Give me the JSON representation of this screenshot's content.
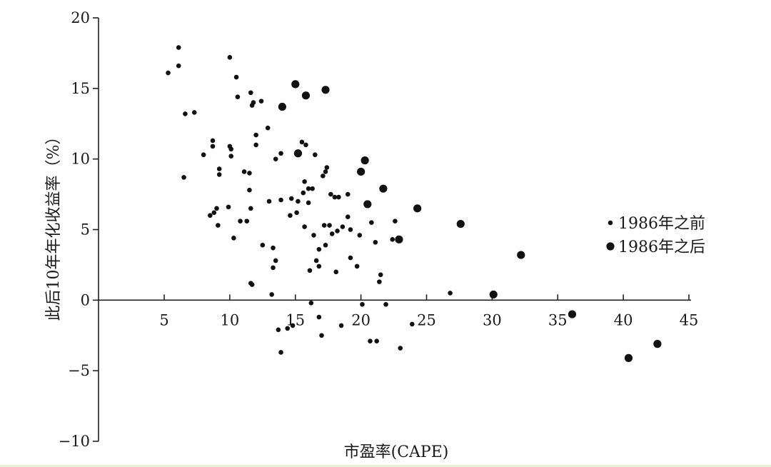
{
  "chart_data": {
    "type": "scatter",
    "xlabel": "市盈率(CAPE)",
    "ylabel": "此后10年年化收益率（%）",
    "xlim": [
      0,
      45
    ],
    "ylim": [
      -10,
      20
    ],
    "x_ticks": [
      "5",
      "10",
      "15",
      "20",
      "25",
      "30",
      "35",
      "40",
      "45"
    ],
    "y_ticks": [
      "20",
      "15",
      "10",
      "5",
      "0",
      "−5",
      "−10"
    ],
    "legend_position": "right",
    "colors": {
      "marker": "#111111",
      "axis": "#222222"
    },
    "series": [
      {
        "name": "1986年之前",
        "marker": "small-dot",
        "points": [
          [
            5.3,
            16.1
          ],
          [
            6.1,
            17.9
          ],
          [
            6.1,
            16.6
          ],
          [
            6.5,
            8.7
          ],
          [
            6.6,
            13.2
          ],
          [
            7.3,
            13.3
          ],
          [
            8.0,
            10.3
          ],
          [
            8.5,
            6.0
          ],
          [
            8.7,
            11.3
          ],
          [
            8.7,
            10.9
          ],
          [
            8.8,
            6.2
          ],
          [
            9.0,
            6.5
          ],
          [
            9.1,
            5.3
          ],
          [
            9.2,
            9.3
          ],
          [
            9.2,
            8.9
          ],
          [
            9.9,
            6.6
          ],
          [
            10.0,
            17.2
          ],
          [
            10.0,
            10.9
          ],
          [
            10.1,
            10.2
          ],
          [
            10.1,
            10.7
          ],
          [
            10.3,
            4.4
          ],
          [
            10.5,
            15.8
          ],
          [
            10.6,
            14.4
          ],
          [
            10.8,
            5.6
          ],
          [
            11.1,
            9.1
          ],
          [
            11.3,
            5.6
          ],
          [
            11.5,
            9.0
          ],
          [
            11.5,
            7.8
          ],
          [
            11.6,
            14.7
          ],
          [
            11.6,
            6.5
          ],
          [
            11.6,
            1.2
          ],
          [
            11.7,
            13.8
          ],
          [
            11.7,
            1.1
          ],
          [
            11.8,
            14.0
          ],
          [
            12.0,
            11.7
          ],
          [
            12.0,
            11.0
          ],
          [
            12.4,
            14.1
          ],
          [
            12.5,
            3.9
          ],
          [
            12.9,
            12.2
          ],
          [
            13.0,
            7.0
          ],
          [
            13.2,
            0.4
          ],
          [
            13.3,
            3.7
          ],
          [
            13.3,
            2.3
          ],
          [
            13.5,
            2.8
          ],
          [
            13.5,
            10.0
          ],
          [
            13.7,
            -2.1
          ],
          [
            13.9,
            10.4
          ],
          [
            13.9,
            7.1
          ],
          [
            13.9,
            -3.7
          ],
          [
            14.4,
            -2.0
          ],
          [
            14.6,
            6.0
          ],
          [
            14.7,
            7.2
          ],
          [
            14.8,
            -1.8
          ],
          [
            15.1,
            6.2
          ],
          [
            15.2,
            7.0
          ],
          [
            15.5,
            11.2
          ],
          [
            15.6,
            7.6
          ],
          [
            15.7,
            5.2
          ],
          [
            15.7,
            8.4
          ],
          [
            15.8,
            11.0
          ],
          [
            16.0,
            7.9
          ],
          [
            16.0,
            6.9
          ],
          [
            16.1,
            2.1
          ],
          [
            16.2,
            -0.2
          ],
          [
            16.3,
            7.9
          ],
          [
            16.4,
            4.6
          ],
          [
            16.5,
            10.3
          ],
          [
            16.6,
            2.8
          ],
          [
            16.8,
            3.6
          ],
          [
            16.8,
            2.4
          ],
          [
            16.8,
            -1.2
          ],
          [
            17.0,
            -2.5
          ],
          [
            17.1,
            8.8
          ],
          [
            17.2,
            5.3
          ],
          [
            17.3,
            9.1
          ],
          [
            17.3,
            3.9
          ],
          [
            17.4,
            9.4
          ],
          [
            17.6,
            5.3
          ],
          [
            17.7,
            7.5
          ],
          [
            17.8,
            4.7
          ],
          [
            18.0,
            7.3
          ],
          [
            18.1,
            2.0
          ],
          [
            18.2,
            4.9
          ],
          [
            18.3,
            7.3
          ],
          [
            18.5,
            -1.8
          ],
          [
            18.6,
            5.2
          ],
          [
            19.0,
            7.5
          ],
          [
            19.0,
            5.9
          ],
          [
            19.2,
            5.0
          ],
          [
            19.2,
            3.0
          ],
          [
            19.7,
            2.4
          ],
          [
            19.9,
            4.6
          ],
          [
            20.1,
            -0.3
          ],
          [
            20.7,
            -2.9
          ],
          [
            20.8,
            5.5
          ],
          [
            21.1,
            4.1
          ],
          [
            21.2,
            -2.9
          ],
          [
            21.4,
            1.3
          ],
          [
            21.5,
            1.8
          ],
          [
            21.9,
            -0.3
          ],
          [
            22.4,
            4.3
          ],
          [
            22.6,
            5.6
          ],
          [
            23.0,
            -3.4
          ],
          [
            23.9,
            -1.7
          ],
          [
            26.8,
            0.5
          ]
        ]
      },
      {
        "name": "1986年之后",
        "marker": "large-dot",
        "points": [
          [
            14.0,
            13.7
          ],
          [
            15.0,
            15.3
          ],
          [
            15.2,
            10.4
          ],
          [
            15.8,
            14.5
          ],
          [
            17.3,
            14.9
          ],
          [
            20.0,
            9.1
          ],
          [
            20.3,
            9.9
          ],
          [
            20.5,
            6.8
          ],
          [
            21.7,
            7.9
          ],
          [
            22.9,
            4.3
          ],
          [
            24.3,
            6.5
          ],
          [
            27.6,
            5.4
          ],
          [
            30.1,
            0.4
          ],
          [
            32.2,
            3.2
          ],
          [
            36.1,
            -1.0
          ],
          [
            40.4,
            -4.1
          ],
          [
            42.6,
            -3.1
          ]
        ]
      }
    ]
  }
}
